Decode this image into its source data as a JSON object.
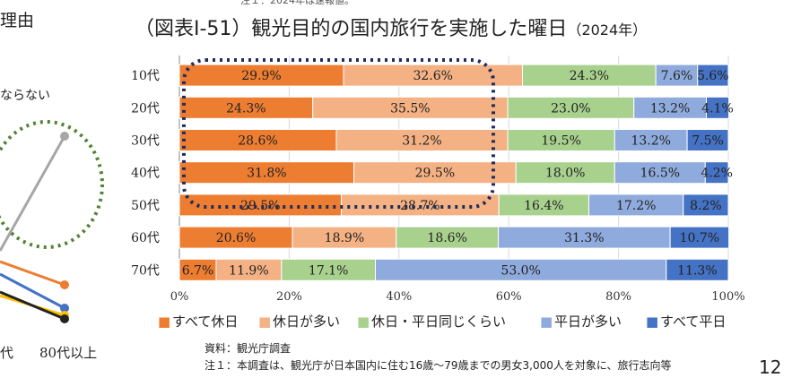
{
  "top_note": "注１：2024年は速報値。",
  "chart_title": "（図表Ⅰ-51）観光目的の国内旅行を実施した曜日",
  "chart_title_year": "（2024年）",
  "left_panel": {
    "title": "理由",
    "caption": "ならない",
    "xlabels": [
      "代",
      "80代以上"
    ]
  },
  "source": "資料：観光庁調査",
  "note1": "注１：本調査は、観光庁が日本国内に住む16歳～79歳までの男女3,000人を対象に、旅行志向等",
  "page_number": "12",
  "chart_data": {
    "type": "bar",
    "orientation": "horizontal",
    "stacked": true,
    "categories": [
      "10代",
      "20代",
      "30代",
      "40代",
      "50代",
      "60代",
      "70代"
    ],
    "series": [
      {
        "name": "すべて休日",
        "color": "#ED7D31",
        "values": [
          29.9,
          24.3,
          28.6,
          31.8,
          29.5,
          20.6,
          6.7
        ]
      },
      {
        "name": "休日が多い",
        "color": "#F4B183",
        "values": [
          32.6,
          35.5,
          31.2,
          29.5,
          28.7,
          18.9,
          11.9
        ]
      },
      {
        "name": "休日・平日同じくらい",
        "color": "#A9D18E",
        "values": [
          24.3,
          23.0,
          19.5,
          18.0,
          16.4,
          18.6,
          17.1
        ]
      },
      {
        "name": "平日が多い",
        "color": "#8FAADC",
        "values": [
          7.6,
          13.2,
          13.2,
          16.5,
          17.2,
          31.3,
          53.0
        ]
      },
      {
        "name": "すべて平日",
        "color": "#4472C4",
        "values": [
          5.6,
          4.1,
          7.5,
          4.2,
          8.2,
          10.7,
          11.3
        ]
      }
    ],
    "xticks": [
      "0%",
      "20%",
      "40%",
      "60%",
      "80%",
      "100%"
    ],
    "xlim": [
      0,
      100
    ],
    "grid": true,
    "legend_position": "bottom",
    "legend_marker": "■"
  }
}
